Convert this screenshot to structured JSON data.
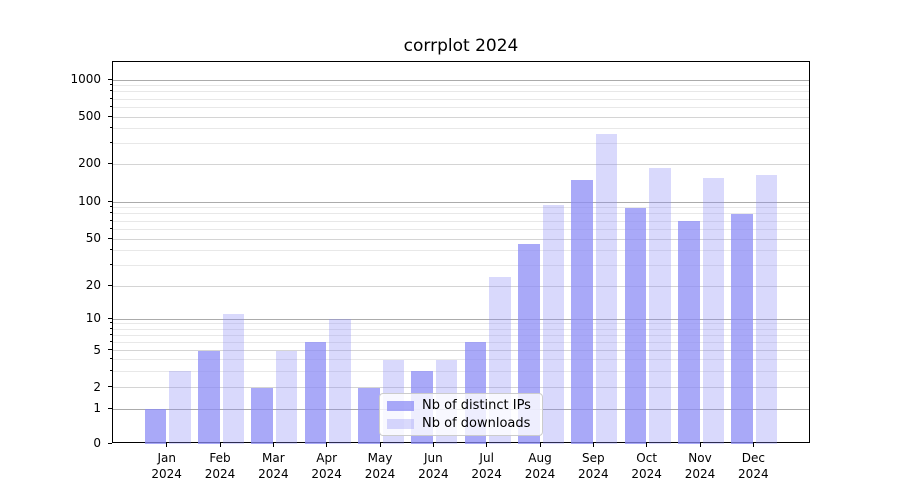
{
  "title": "corrplot 2024",
  "chart_data": {
    "type": "bar",
    "title": "corrplot 2024",
    "categories": [
      "Jan 2024",
      "Feb 2024",
      "Mar 2024",
      "Apr 2024",
      "May 2024",
      "Jun 2024",
      "Jul 2024",
      "Aug 2024",
      "Sep 2024",
      "Oct 2024",
      "Nov 2024",
      "Dec 2024"
    ],
    "x_tick_lines": [
      [
        "Jan",
        "2024"
      ],
      [
        "Feb",
        "2024"
      ],
      [
        "Mar",
        "2024"
      ],
      [
        "Apr",
        "2024"
      ],
      [
        "May",
        "2024"
      ],
      [
        "Jun",
        "2024"
      ],
      [
        "Jul",
        "2024"
      ],
      [
        "Aug",
        "2024"
      ],
      [
        "Sep",
        "2024"
      ],
      [
        "Oct",
        "2024"
      ],
      [
        "Nov",
        "2024"
      ],
      [
        "Dec",
        "2024"
      ]
    ],
    "series": [
      {
        "name": "Nb of distinct IPs",
        "color": "rgba(140,140,245,0.75)",
        "values": [
          1,
          5,
          2,
          6,
          2,
          3,
          6,
          45,
          150,
          90,
          70,
          80
        ]
      },
      {
        "name": "Nb of downloads",
        "color": "rgba(140,140,245,0.33)",
        "values": [
          3,
          11,
          5,
          10,
          4,
          4,
          24,
          95,
          360,
          185,
          155,
          165
        ]
      }
    ],
    "y_ticks": [
      0,
      1,
      2,
      5,
      10,
      20,
      50,
      100,
      200,
      500,
      1000
    ],
    "y_minor_ticks": [
      3,
      4,
      6,
      7,
      8,
      9,
      30,
      40,
      60,
      70,
      80,
      90,
      300,
      400,
      600,
      700,
      800,
      900
    ],
    "y_scale": "log above 1, linear 0-1",
    "ylim": [
      0,
      1400
    ],
    "xlabel": "",
    "ylabel": "",
    "grid": true,
    "legend_position": "lower center",
    "colors": {
      "bar_dark": "rgba(140,140,245,0.75)",
      "bar_light": "rgba(140,140,245,0.33)",
      "major_grid": "#ababab",
      "mid_grid": "#d4d4d4",
      "minor_grid": "#e8e8e8",
      "spine": "#000000",
      "text": "#000000",
      "legend_border": "#cccccc"
    }
  },
  "legend": {
    "items": [
      {
        "label": "Nb of distinct IPs"
      },
      {
        "label": "Nb of downloads"
      }
    ]
  }
}
